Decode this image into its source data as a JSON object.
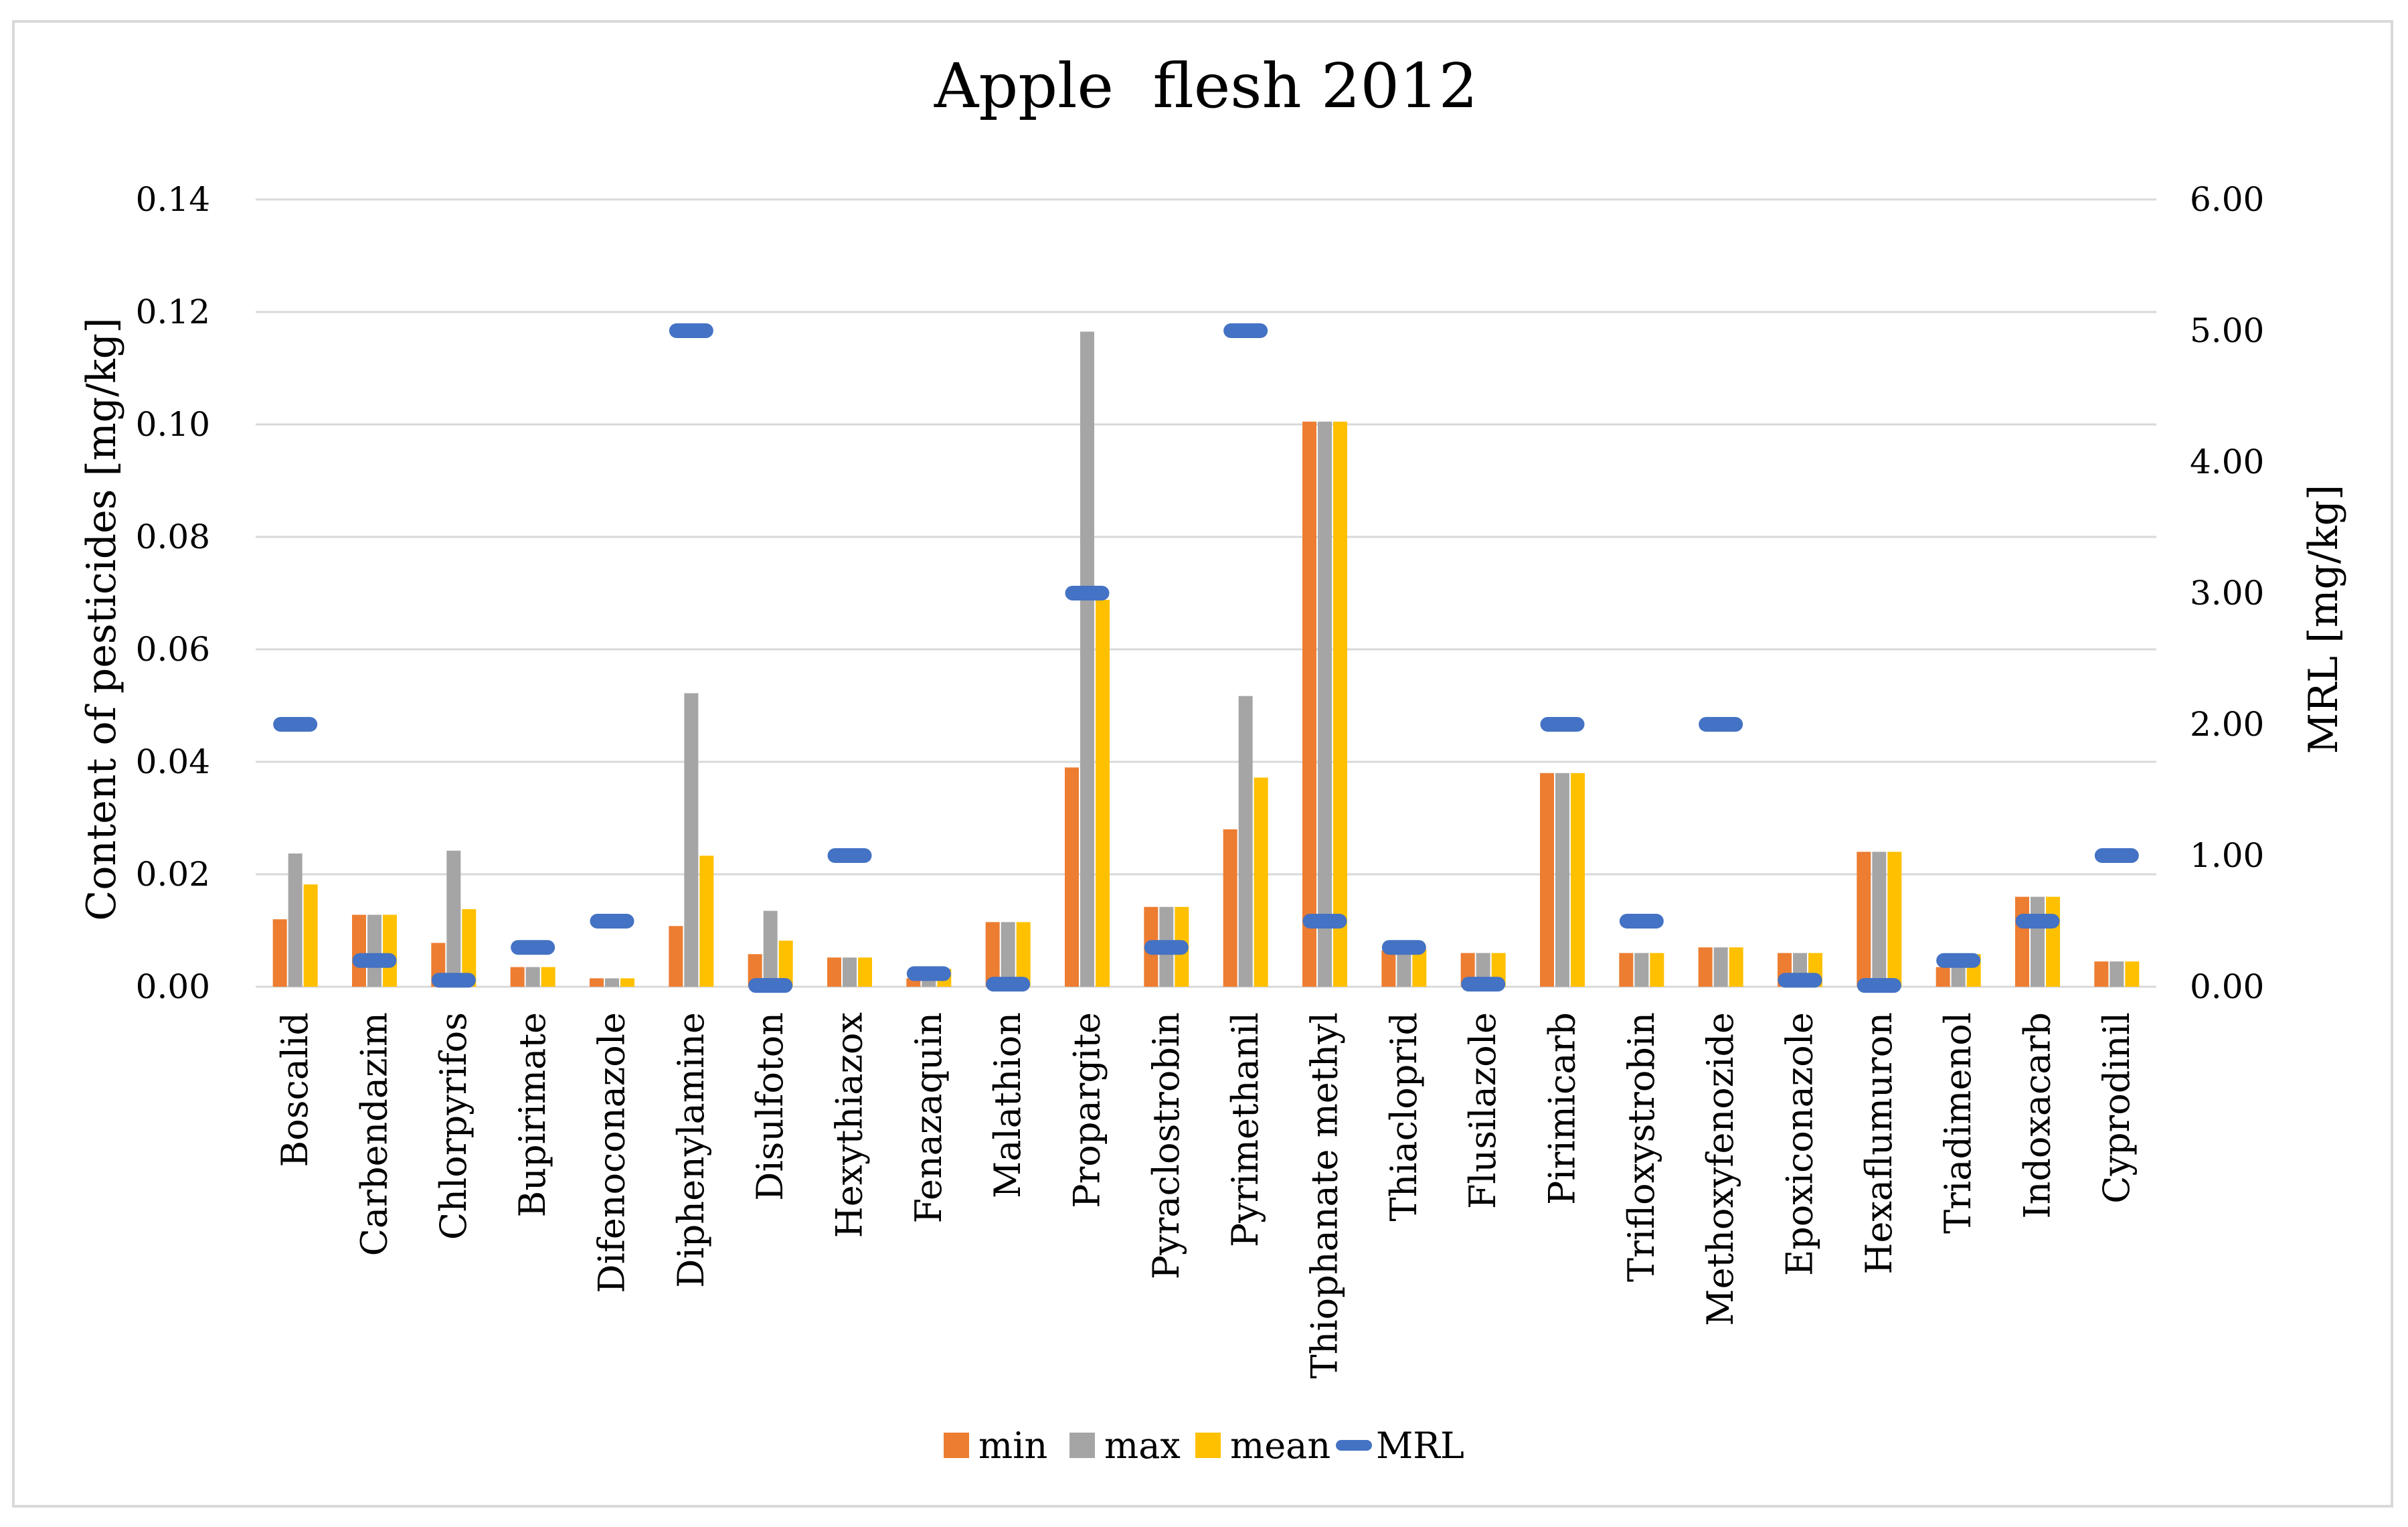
{
  "chart_data": {
    "type": "bar",
    "title": "Apple  flesh 2012",
    "ylabel": "Content of pesticides [mg/kg]",
    "y2label": "MRL [mg/kg]",
    "ylim": [
      0,
      0.14
    ],
    "y2lim": [
      0,
      6
    ],
    "yticks": [
      "0.00",
      "0.02",
      "0.04",
      "0.06",
      "0.08",
      "0.10",
      "0.12",
      "0.14"
    ],
    "y2ticks": [
      "0.00",
      "1.00",
      "2.00",
      "3.00",
      "4.00",
      "5.00",
      "6.00"
    ],
    "grid": true,
    "legend_position": "bottom",
    "categories": [
      "Boscalid",
      "Carbendazim",
      "Chlorpyrifos",
      "Bupirimate",
      "Difenoconazole",
      "Diphenylamine",
      "Disulfoton",
      "Hexythiazox",
      "Fenazaquin",
      "Malathion",
      "Propargite",
      "Pyraclostrobin",
      "Pyrimethanil",
      "Thiophanate methyl",
      "Thiacloprid",
      "Flusilazole",
      "Pirimicarb",
      "Trifloxystrobin",
      "Methoxyfenozide",
      "Epoxiconazole",
      "Hexaflumuron",
      "Triadimenol",
      "Indoxacarb",
      "Cyprodinil"
    ],
    "series": [
      {
        "name": "min",
        "type": "bar",
        "axis": "left",
        "color": "#ED7D31",
        "values": [
          0.012,
          0.0128,
          0.0078,
          0.0035,
          0.0015,
          0.0108,
          0.0058,
          0.0052,
          0.0015,
          0.0115,
          0.039,
          0.0142,
          0.028,
          0.1005,
          0.0065,
          0.006,
          0.038,
          0.006,
          0.007,
          0.006,
          0.024,
          0.0035,
          0.016,
          0.0045
        ]
      },
      {
        "name": "max",
        "type": "bar",
        "axis": "left",
        "color": "#A5A5A5",
        "values": [
          0.0237,
          0.0128,
          0.0242,
          0.0035,
          0.0015,
          0.0522,
          0.0135,
          0.0052,
          0.003,
          0.0115,
          0.1165,
          0.0142,
          0.0517,
          0.1005,
          0.0068,
          0.006,
          0.038,
          0.006,
          0.007,
          0.006,
          0.024,
          0.0055,
          0.016,
          0.0045
        ]
      },
      {
        "name": "mean",
        "type": "bar",
        "axis": "left",
        "color": "#FFC000",
        "values": [
          0.0182,
          0.0128,
          0.0138,
          0.0035,
          0.0015,
          0.0233,
          0.0082,
          0.0052,
          0.0032,
          0.0115,
          0.0688,
          0.0142,
          0.0372,
          0.1005,
          0.0067,
          0.006,
          0.038,
          0.006,
          0.007,
          0.006,
          0.024,
          0.0058,
          0.016,
          0.0045
        ]
      },
      {
        "name": "MRL",
        "type": "marker",
        "axis": "right",
        "color": "#4472C4",
        "values": [
          2.0,
          0.2,
          0.05,
          0.3,
          0.5,
          5.0,
          0.01,
          1.0,
          0.1,
          0.02,
          3.0,
          0.3,
          5.0,
          0.5,
          0.3,
          0.02,
          2.0,
          0.5,
          2.0,
          0.05,
          0.01,
          0.2,
          0.5,
          1.0
        ]
      }
    ]
  }
}
